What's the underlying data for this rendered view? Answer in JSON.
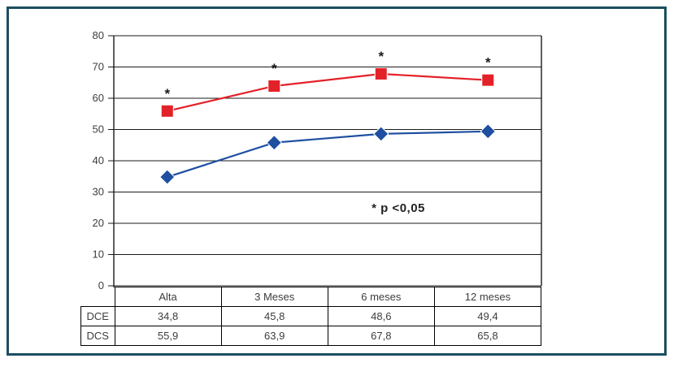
{
  "chart_data": {
    "type": "line",
    "categories": [
      "Alta",
      "3 Meses",
      "6 meses",
      "12 meses"
    ],
    "series": [
      {
        "name": "DCE",
        "values": [
          34.8,
          45.8,
          48.6,
          49.4
        ],
        "color": "#1e4fa1",
        "marker": "diamond",
        "significant": [
          false,
          false,
          false,
          false
        ]
      },
      {
        "name": "DCS",
        "values": [
          55.9,
          63.9,
          67.8,
          65.8
        ],
        "color": "#e32128",
        "marker": "square",
        "significant": [
          true,
          true,
          true,
          true
        ]
      }
    ],
    "title": "",
    "xlabel": "",
    "ylabel": "",
    "ylim": [
      0,
      80
    ],
    "ytick_step": 10,
    "grid": true,
    "legend_position": "none",
    "annotation": "* p <0,05",
    "asterisk_symbol": "*"
  },
  "table": {
    "corner_label": "",
    "headers": [
      "Alta",
      "3 Meses",
      "6 meses",
      "12 meses"
    ],
    "rows": [
      {
        "label": "DCE",
        "values": [
          "34,8",
          "45,8",
          "48,6",
          "49,4"
        ]
      },
      {
        "label": "DCS",
        "values": [
          "55,9",
          "63,9",
          "67,8",
          "65,8"
        ]
      }
    ]
  },
  "colors": {
    "frame_border": "#1c4e60",
    "dce_blue": "#1e4fa1",
    "dcs_red": "#e32128",
    "grid_line": "#1a1a1a",
    "text": "#3d3d3c"
  }
}
